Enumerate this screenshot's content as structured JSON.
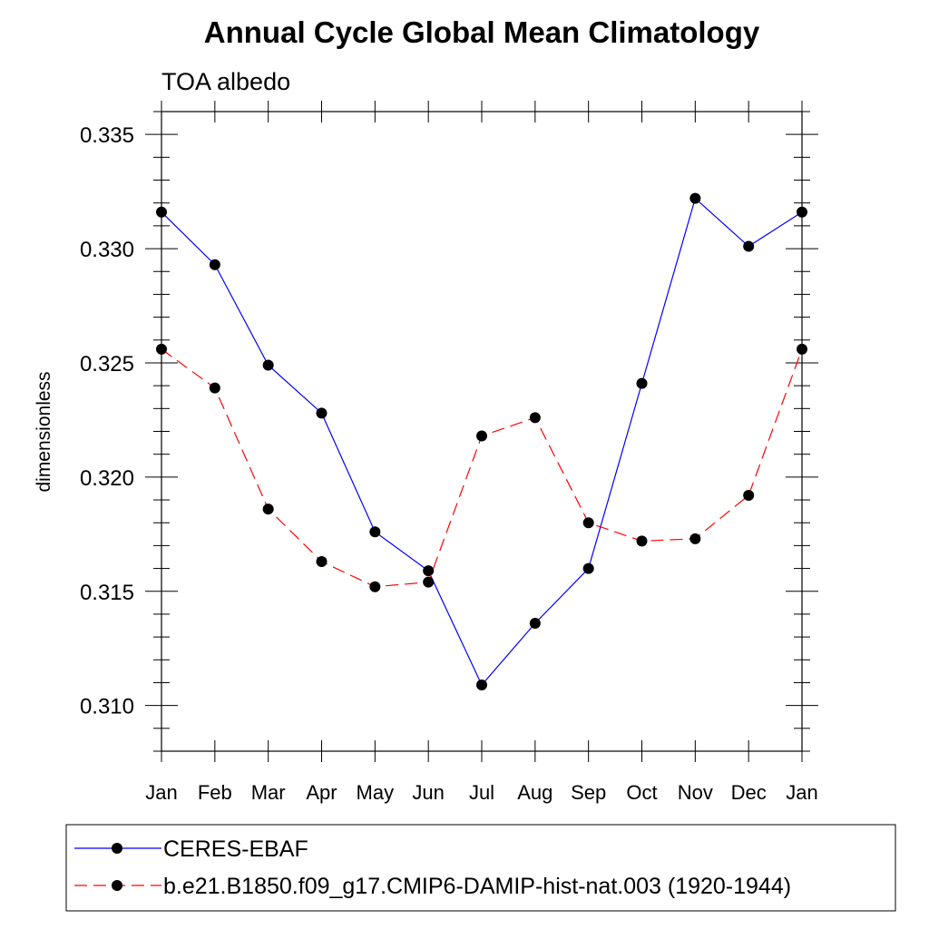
{
  "chart_data": {
    "type": "line",
    "title": "Annual Cycle Global Mean Climatology",
    "subtitle": "TOA albedo",
    "xlabel": "",
    "ylabel": "dimensionless",
    "categories": [
      "Jan",
      "Feb",
      "Mar",
      "Apr",
      "May",
      "Jun",
      "Jul",
      "Aug",
      "Sep",
      "Oct",
      "Nov",
      "Dec",
      "Jan"
    ],
    "ylim": [
      0.308,
      0.336
    ],
    "yticks": [
      0.31,
      0.315,
      0.32,
      0.325,
      0.33,
      0.335
    ],
    "ytick_labels": [
      "0.310",
      "0.315",
      "0.320",
      "0.325",
      "0.330",
      "0.335"
    ],
    "grid": false,
    "legend_position": "bottom",
    "series": [
      {
        "name": "CERES-EBAF",
        "color": "#0000ff",
        "line_style": "solid",
        "marker": "filled-circle",
        "values": [
          0.3316,
          0.3293,
          0.3249,
          0.3228,
          0.3176,
          0.3159,
          0.3109,
          0.3136,
          0.316,
          0.3241,
          0.3322,
          0.3301,
          0.3316
        ]
      },
      {
        "name": "b.e21.B1850.f09_g17.CMIP6-DAMIP-hist-nat.003 (1920-1944)",
        "color": "#ff0000",
        "line_style": "dashed",
        "marker": "filled-circle",
        "values": [
          0.3256,
          0.3239,
          0.3186,
          0.3163,
          0.3152,
          0.3154,
          0.3218,
          0.3226,
          0.318,
          0.3172,
          0.3173,
          0.3192,
          0.3256
        ]
      }
    ]
  }
}
